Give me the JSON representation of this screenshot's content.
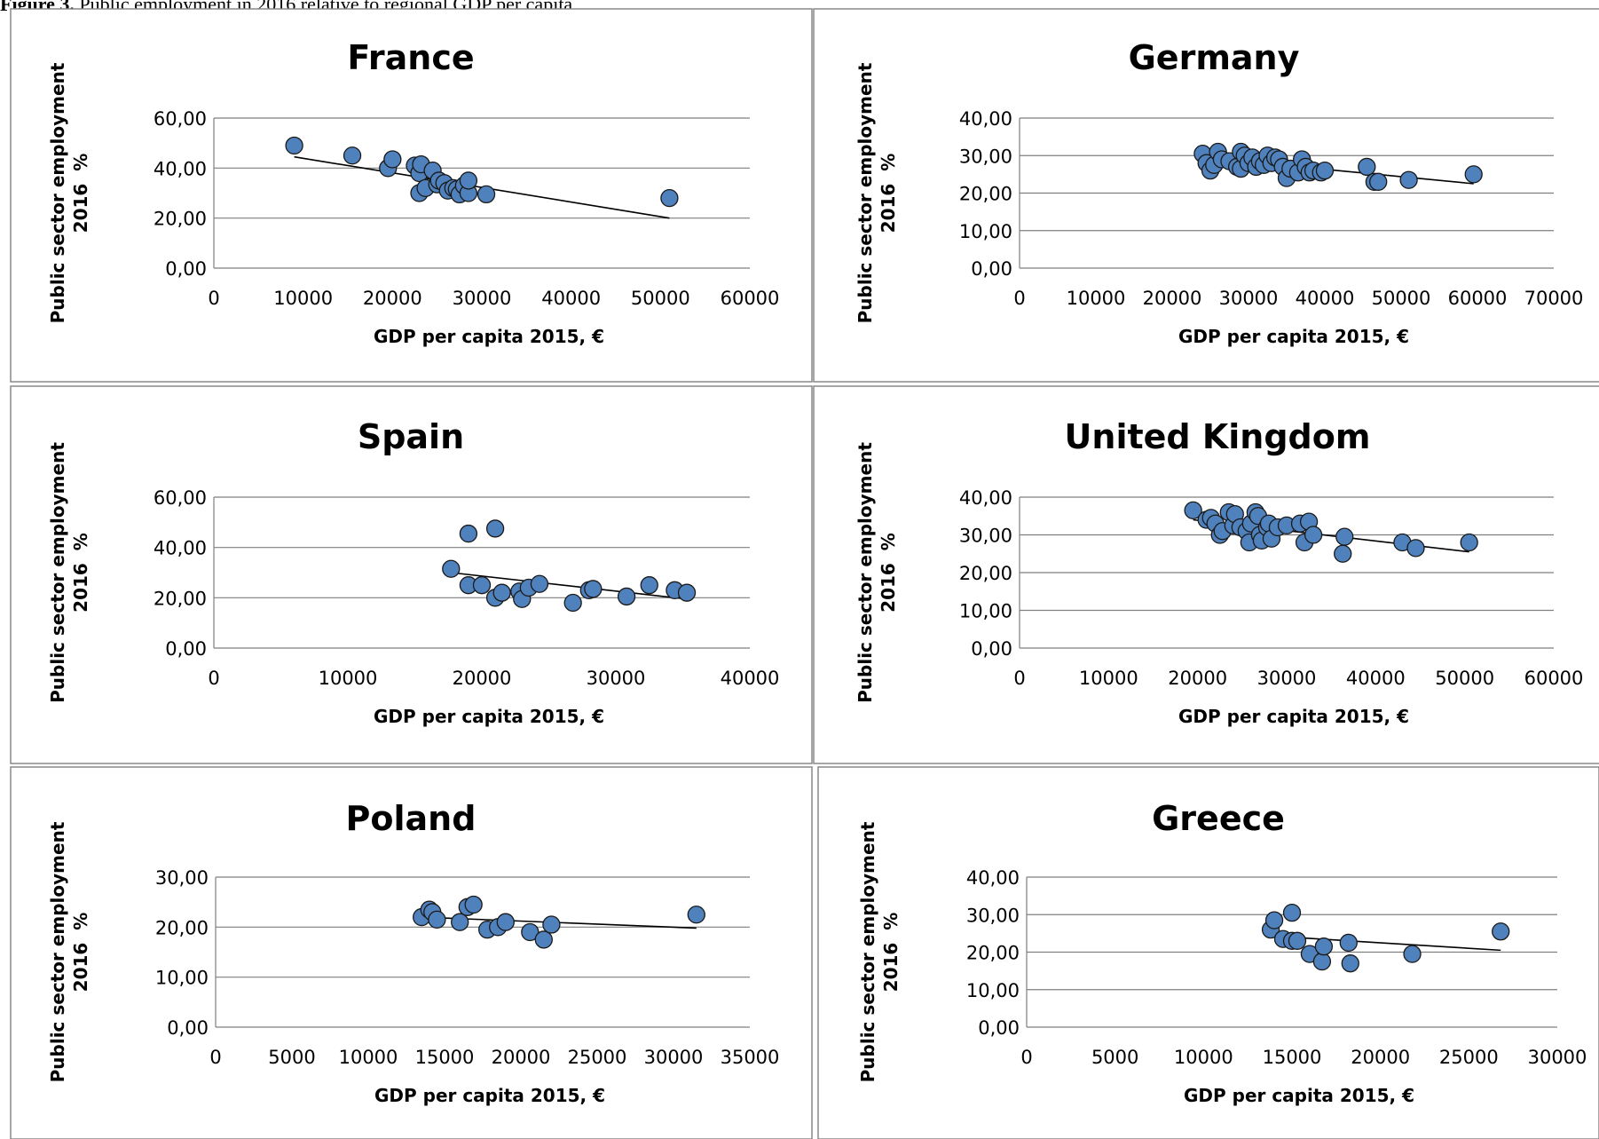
{
  "figure": {
    "caption_label": "Figure 3.",
    "caption_text": " Public employment in 2016 relative to regional GDP per capita"
  },
  "chart_data": [
    {
      "type": "scatter",
      "title": "France",
      "xlabel": "GDP per capita 2015, €",
      "ylabel_line1": "Public sector employment",
      "ylabel_line2": "2016  %",
      "xlim": [
        0,
        60000
      ],
      "xticks": [
        0,
        10000,
        20000,
        30000,
        40000,
        50000,
        60000
      ],
      "xtick_labels": [
        "0",
        "10000",
        "20000",
        "30000",
        "40000",
        "50000",
        "60000"
      ],
      "ylim": [
        0,
        60
      ],
      "yticks": [
        0,
        20,
        40,
        60
      ],
      "ytick_labels": [
        "0,00",
        "20,00",
        "40,00",
        "60,00"
      ],
      "grid": "horizontal",
      "points": [
        [
          9000,
          49
        ],
        [
          15500,
          45
        ],
        [
          19500,
          40
        ],
        [
          20000,
          43.5
        ],
        [
          22500,
          41
        ],
        [
          23000,
          38
        ],
        [
          23200,
          41.5
        ],
        [
          23000,
          30
        ],
        [
          23700,
          32
        ],
        [
          24500,
          39
        ],
        [
          25000,
          33.5
        ],
        [
          25200,
          35
        ],
        [
          25800,
          34
        ],
        [
          26200,
          31
        ],
        [
          26800,
          32
        ],
        [
          27200,
          31.5
        ],
        [
          27500,
          29.5
        ],
        [
          28000,
          33
        ],
        [
          28500,
          30
        ],
        [
          28500,
          35
        ],
        [
          30500,
          29.5
        ],
        [
          51000,
          28
        ]
      ],
      "trendline": [
        [
          9000,
          44.5
        ],
        [
          51000,
          20
        ]
      ]
    },
    {
      "type": "scatter",
      "title": "Germany",
      "xlabel": "GDP per capita 2015, €",
      "ylabel_line1": "Public sector employment",
      "ylabel_line2": "2016  %",
      "xlim": [
        0,
        70000
      ],
      "xticks": [
        0,
        10000,
        20000,
        30000,
        40000,
        50000,
        60000,
        70000
      ],
      "xtick_labels": [
        "0",
        "10000",
        "20000",
        "30000",
        "40000",
        "50000",
        "60000",
        "70000"
      ],
      "ylim": [
        0,
        40
      ],
      "yticks": [
        0,
        10,
        20,
        30,
        40
      ],
      "ytick_labels": [
        "0,00",
        "10,00",
        "20,00",
        "30,00",
        "40,00"
      ],
      "grid": "horizontal",
      "points": [
        [
          24000,
          30.5
        ],
        [
          24500,
          28
        ],
        [
          25000,
          26
        ],
        [
          25500,
          27.5
        ],
        [
          26000,
          31
        ],
        [
          26500,
          29
        ],
        [
          27500,
          28.5
        ],
        [
          28500,
          27
        ],
        [
          29000,
          31
        ],
        [
          29000,
          26.5
        ],
        [
          29500,
          30
        ],
        [
          30000,
          28
        ],
        [
          30500,
          29.5
        ],
        [
          31000,
          27
        ],
        [
          31500,
          28.5
        ],
        [
          32000,
          27.5
        ],
        [
          32500,
          30
        ],
        [
          33000,
          28
        ],
        [
          33500,
          29.5
        ],
        [
          34000,
          29
        ],
        [
          34500,
          27
        ],
        [
          35000,
          24
        ],
        [
          35500,
          26.5
        ],
        [
          36500,
          25.5
        ],
        [
          37000,
          29
        ],
        [
          37500,
          27
        ],
        [
          38000,
          25.5
        ],
        [
          38500,
          26
        ],
        [
          39500,
          25.5
        ],
        [
          40000,
          26
        ],
        [
          45500,
          27
        ],
        [
          46500,
          23
        ],
        [
          47000,
          23
        ],
        [
          51000,
          23.5
        ],
        [
          59500,
          25
        ]
      ],
      "trendline": [
        [
          24000,
          29.5
        ],
        [
          59500,
          22.5
        ]
      ]
    },
    {
      "type": "scatter",
      "title": "Spain",
      "xlabel": "GDP per capita 2015, €",
      "ylabel_line1": "Public sector employment",
      "ylabel_line2": "2016  %",
      "xlim": [
        0,
        40000
      ],
      "xticks": [
        0,
        10000,
        20000,
        30000,
        40000
      ],
      "xtick_labels": [
        "0",
        "10000",
        "20000",
        "30000",
        "40000"
      ],
      "ylim": [
        0,
        60
      ],
      "yticks": [
        0,
        20,
        40,
        60
      ],
      "ytick_labels": [
        "0,00",
        "20,00",
        "40,00",
        "60,00"
      ],
      "grid": "horizontal",
      "points": [
        [
          17700,
          31.5
        ],
        [
          19000,
          45.5
        ],
        [
          19000,
          25
        ],
        [
          20000,
          25
        ],
        [
          21000,
          20
        ],
        [
          21000,
          47.5
        ],
        [
          21500,
          22
        ],
        [
          22800,
          22.5
        ],
        [
          23000,
          19.5
        ],
        [
          23500,
          24
        ],
        [
          24300,
          25.5
        ],
        [
          26800,
          18
        ],
        [
          28000,
          23
        ],
        [
          28300,
          23.5
        ],
        [
          30800,
          20.5
        ],
        [
          32500,
          25
        ],
        [
          34400,
          23
        ],
        [
          35300,
          22
        ]
      ],
      "trendline": [
        [
          17700,
          30
        ],
        [
          35300,
          19.5
        ]
      ]
    },
    {
      "type": "scatter",
      "title": "United Kingdom",
      "xlabel": "GDP per capita 2015, €",
      "ylabel_line1": "Public sector employment",
      "ylabel_line2": "2016  %",
      "xlim": [
        0,
        60000
      ],
      "xticks": [
        0,
        10000,
        20000,
        30000,
        40000,
        50000,
        60000
      ],
      "xtick_labels": [
        "0",
        "10000",
        "20000",
        "30000",
        "40000",
        "50000",
        "60000"
      ],
      "ylim": [
        0,
        40
      ],
      "yticks": [
        0,
        10,
        20,
        30,
        40
      ],
      "ytick_labels": [
        "0,00",
        "10,00",
        "20,00",
        "30,00",
        "40,00"
      ],
      "grid": "horizontal",
      "points": [
        [
          19500,
          36.5
        ],
        [
          21000,
          34
        ],
        [
          21500,
          34.5
        ],
        [
          22000,
          33
        ],
        [
          22500,
          30
        ],
        [
          22800,
          31
        ],
        [
          23500,
          36
        ],
        [
          24000,
          32.5
        ],
        [
          24200,
          35.5
        ],
        [
          24800,
          32
        ],
        [
          25500,
          31
        ],
        [
          25800,
          28
        ],
        [
          26000,
          33
        ],
        [
          26500,
          36
        ],
        [
          26800,
          35
        ],
        [
          27000,
          30
        ],
        [
          27200,
          28.5
        ],
        [
          27800,
          32
        ],
        [
          28000,
          33
        ],
        [
          28300,
          29
        ],
        [
          29000,
          32
        ],
        [
          30000,
          32.5
        ],
        [
          31500,
          33
        ],
        [
          32000,
          28
        ],
        [
          32500,
          33.5
        ],
        [
          33000,
          30
        ],
        [
          36300,
          25
        ],
        [
          36500,
          29.5
        ],
        [
          43000,
          28
        ],
        [
          44500,
          26.5
        ],
        [
          50500,
          28
        ]
      ],
      "trendline": [
        [
          19500,
          34
        ],
        [
          50500,
          25.5
        ]
      ]
    },
    {
      "type": "scatter",
      "title": "Poland",
      "xlabel": "GDP per capita 2015, €",
      "ylabel_line1": "Public sector employment",
      "ylabel_line2": "2016  %",
      "xlim": [
        0,
        35000
      ],
      "xticks": [
        0,
        5000,
        10000,
        15000,
        20000,
        25000,
        30000,
        35000
      ],
      "xtick_labels": [
        "0",
        "5000",
        "10000",
        "15000",
        "20000",
        "25000",
        "30000",
        "35000"
      ],
      "ylim": [
        0,
        30
      ],
      "yticks": [
        0,
        10,
        20,
        30
      ],
      "ytick_labels": [
        "0,00",
        "10,00",
        "20,00",
        "30,00"
      ],
      "grid": "horizontal",
      "points": [
        [
          13500,
          22
        ],
        [
          14000,
          23.5
        ],
        [
          14200,
          23
        ],
        [
          14500,
          21.5
        ],
        [
          16000,
          21
        ],
        [
          16500,
          24
        ],
        [
          16900,
          24.5
        ],
        [
          17800,
          19.5
        ],
        [
          18500,
          20
        ],
        [
          19000,
          21
        ],
        [
          20600,
          19
        ],
        [
          21500,
          17.5
        ],
        [
          22000,
          20.5
        ],
        [
          31500,
          22.5
        ]
      ],
      "trendline": [
        [
          13500,
          22
        ],
        [
          31500,
          19.8
        ]
      ]
    },
    {
      "type": "scatter",
      "title": "Greece",
      "xlabel": "GDP per capita 2015, €",
      "ylabel_line1": "Public sector employment",
      "ylabel_line2": "2016  %",
      "xlim": [
        0,
        30000
      ],
      "xticks": [
        0,
        5000,
        10000,
        15000,
        20000,
        25000,
        30000
      ],
      "xtick_labels": [
        "0",
        "5000",
        "10000",
        "15000",
        "20000",
        "25000",
        "30000"
      ],
      "ylim": [
        0,
        40
      ],
      "yticks": [
        0,
        10,
        20,
        30,
        40
      ],
      "ytick_labels": [
        "0,00",
        "10,00",
        "20,00",
        "30,00",
        "40,00"
      ],
      "grid": "horizontal",
      "points": [
        [
          13800,
          26
        ],
        [
          14000,
          28.5
        ],
        [
          14500,
          23.5
        ],
        [
          15000,
          23
        ],
        [
          15300,
          23
        ],
        [
          15000,
          30.5
        ],
        [
          16000,
          19.5
        ],
        [
          16700,
          17.5
        ],
        [
          16800,
          21.5
        ],
        [
          18200,
          22.5
        ],
        [
          18300,
          17
        ],
        [
          21800,
          19.5
        ],
        [
          26800,
          25.5
        ]
      ],
      "trendline": [
        [
          13800,
          24.3
        ],
        [
          26800,
          20.5
        ]
      ]
    }
  ]
}
